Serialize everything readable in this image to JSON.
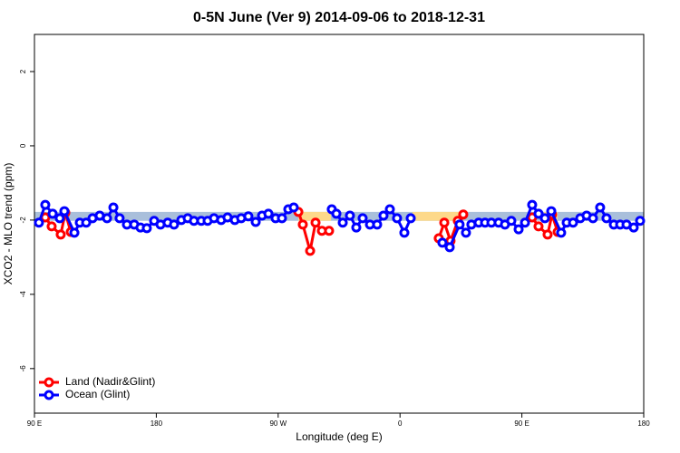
{
  "chart_data": {
    "type": "line",
    "title": "0-5N June (Ver 9)   2014-09-06 to 2018-12-31",
    "x_label": "Longitude (deg E)",
    "y_label": "XCO2 - MLO trend (ppm)",
    "xlim": [
      90,
      540
    ],
    "ylim": [
      -7.2,
      3
    ],
    "xticks": [
      {
        "value": 90,
        "label": "90 E"
      },
      180,
      {
        "value": 270,
        "label": "90 W"
      },
      {
        "value": 360,
        "label": "0"
      },
      {
        "value": 450,
        "label": "90 E"
      },
      {
        "value": 540,
        "label": "180"
      }
    ],
    "yticks": [
      -6,
      -4,
      -2,
      0,
      2
    ],
    "legend": "bottom-left",
    "bands": [
      {
        "color": "#a9bfdb",
        "x": [
          90,
          540
        ],
        "y": [
          -2.02,
          -1.78
        ]
      },
      {
        "color": "#fdd98a",
        "x": [
          284.9,
          309.0
        ],
        "y": [
          -2.02,
          -1.78
        ]
      },
      {
        "color": "#fdd98a",
        "x": [
          369.2,
          406.1
        ],
        "y": [
          -2.02,
          -1.78
        ]
      },
      {
        "color": "#fdd98a",
        "x": [
          466.3,
          476.4
        ],
        "y": [
          -2.02,
          -1.78
        ]
      }
    ],
    "series": [
      {
        "name": "Land (Nadir&Glint)",
        "color": "#ff0000",
        "x": [
          98.0,
          102.7,
          109.4,
          112.8,
          116.8,
          null,
          284.9,
          288.2,
          293.6,
          297.6,
          302.3,
          307.6,
          null,
          388.6,
          392.7,
          397.3,
          402.7,
          406.7,
          null,
          457.6,
          462.3,
          469.0,
          472.3,
          476.4
        ],
        "values": [
          -1.93,
          -2.17,
          -2.39,
          -1.8,
          -2.32,
          null,
          -1.78,
          -2.12,
          -2.83,
          -2.07,
          -2.29,
          -2.29,
          null,
          -2.49,
          -2.07,
          -2.56,
          -2.02,
          -1.85,
          null,
          -1.93,
          -2.17,
          -2.39,
          -1.85,
          -2.32
        ]
      },
      {
        "name": "Ocean (Glint)",
        "color": "#0000ff",
        "x": [
          93.3,
          98.0,
          103.4,
          108.7,
          112.1,
          119.5,
          123.5,
          128.2,
          132.9,
          138.2,
          143.6,
          148.3,
          152.9,
          158.3,
          163.7,
          168.3,
          173.0,
          178.4,
          183.1,
          188.4,
          193.1,
          198.5,
          203.2,
          207.8,
          213.2,
          217.9,
          222.6,
          227.9,
          232.6,
          238.0,
          242.7,
          248.0,
          253.4,
          258.1,
          262.8,
          268.1,
          272.8,
          277.5,
          281.5,
          null,
          309.6,
          313.0,
          317.7,
          323.0,
          327.7,
          332.4,
          337.8,
          343.1,
          347.8,
          352.5,
          357.8,
          363.2,
          367.9,
          null,
          391.3,
          396.7,
          404.0,
          408.7,
          412.7,
          418.1,
          422.8,
          427.5,
          432.8,
          437.5,
          442.2,
          447.6,
          452.3,
          457.6,
          462.3,
          467.0,
          471.7,
          479.0,
          483.1,
          487.8,
          493.1,
          497.8,
          502.5,
          507.8,
          512.5,
          517.9,
          522.6,
          527.3,
          532.6,
          537.3
        ],
        "values": [
          -2.07,
          -1.59,
          -1.83,
          -1.95,
          -1.76,
          -2.34,
          -2.07,
          -2.07,
          -1.95,
          -1.88,
          -1.95,
          -1.66,
          -1.95,
          -2.12,
          -2.12,
          -2.2,
          -2.22,
          -2.02,
          -2.12,
          -2.07,
          -2.12,
          -2.0,
          -1.95,
          -2.02,
          -2.02,
          -2.02,
          -1.95,
          -2.0,
          -1.93,
          -2.0,
          -1.95,
          -1.9,
          -2.05,
          -1.88,
          -1.83,
          -1.95,
          -1.95,
          -1.71,
          -1.66,
          null,
          -1.71,
          -1.83,
          -2.07,
          -1.88,
          -2.2,
          -1.95,
          -2.12,
          -2.12,
          -1.88,
          -1.71,
          -1.95,
          -2.34,
          -1.95,
          null,
          -2.61,
          -2.73,
          -2.12,
          -2.34,
          -2.12,
          -2.07,
          -2.07,
          -2.07,
          -2.07,
          -2.12,
          -2.02,
          -2.25,
          -2.07,
          -1.59,
          -1.83,
          -1.95,
          -1.76,
          -2.34,
          -2.07,
          -2.07,
          -1.95,
          -1.88,
          -1.95,
          -1.66,
          -1.95,
          -2.12,
          -2.12,
          -2.12,
          -2.2,
          -2.02
        ]
      }
    ]
  }
}
